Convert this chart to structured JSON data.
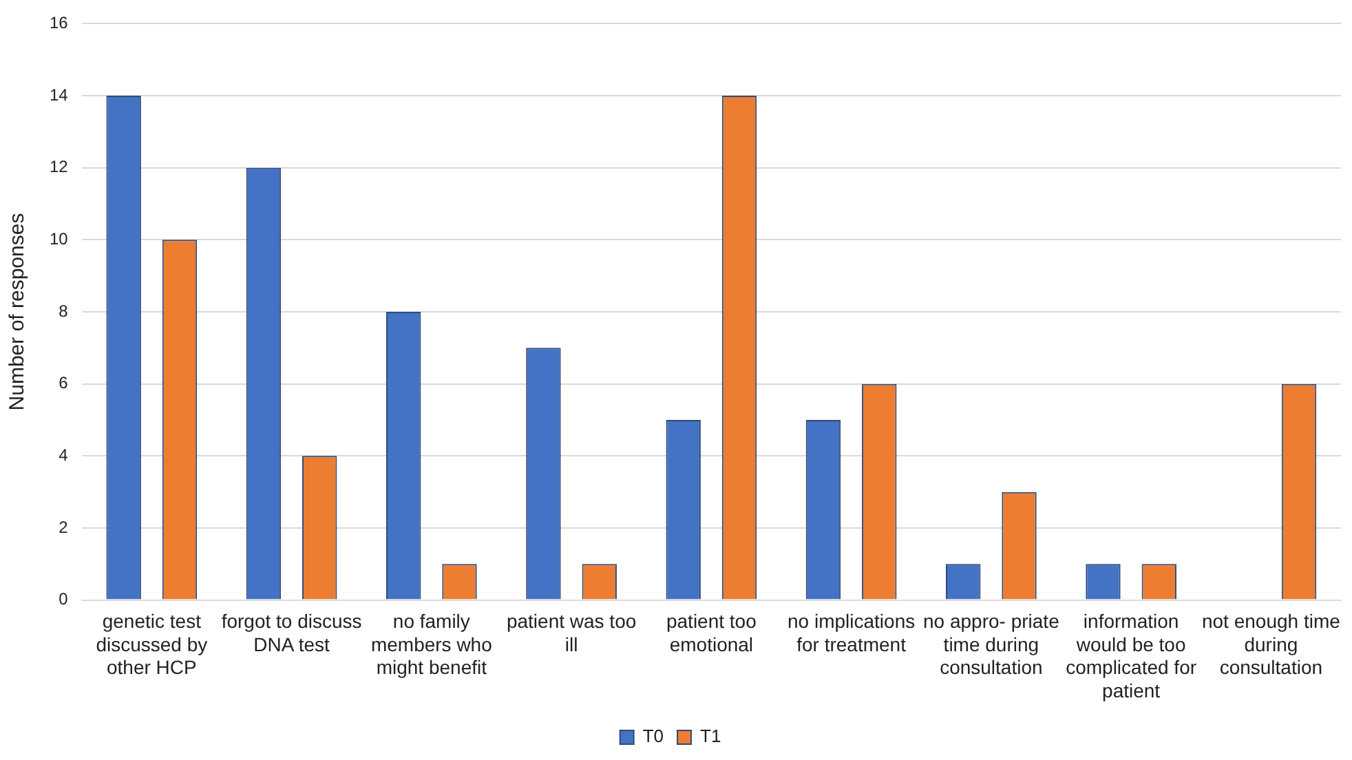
{
  "chart_data": {
    "type": "bar",
    "ylabel": "Number of responses",
    "categories": [
      "genetic test discussed by other HCP",
      "forgot to discuss DNA test",
      "no family members who might benefit",
      "patient was too ill",
      "patient too emotional",
      "no implications for treatment",
      "no appro- priate time during consultation",
      "information would be too complicated for patient",
      "not enough time during consultation"
    ],
    "series": [
      {
        "name": "T0",
        "color": "#4472c4",
        "values": [
          14,
          12,
          8,
          7,
          5,
          5,
          1,
          1,
          null
        ]
      },
      {
        "name": "T1",
        "color": "#ed7d31",
        "values": [
          10,
          4,
          1,
          1,
          14,
          6,
          3,
          1,
          6
        ]
      }
    ],
    "ylim": [
      0,
      16
    ],
    "yticks": [
      0,
      2,
      4,
      6,
      8,
      10,
      12,
      14,
      16
    ],
    "grid": "y",
    "legend": "bottom"
  }
}
